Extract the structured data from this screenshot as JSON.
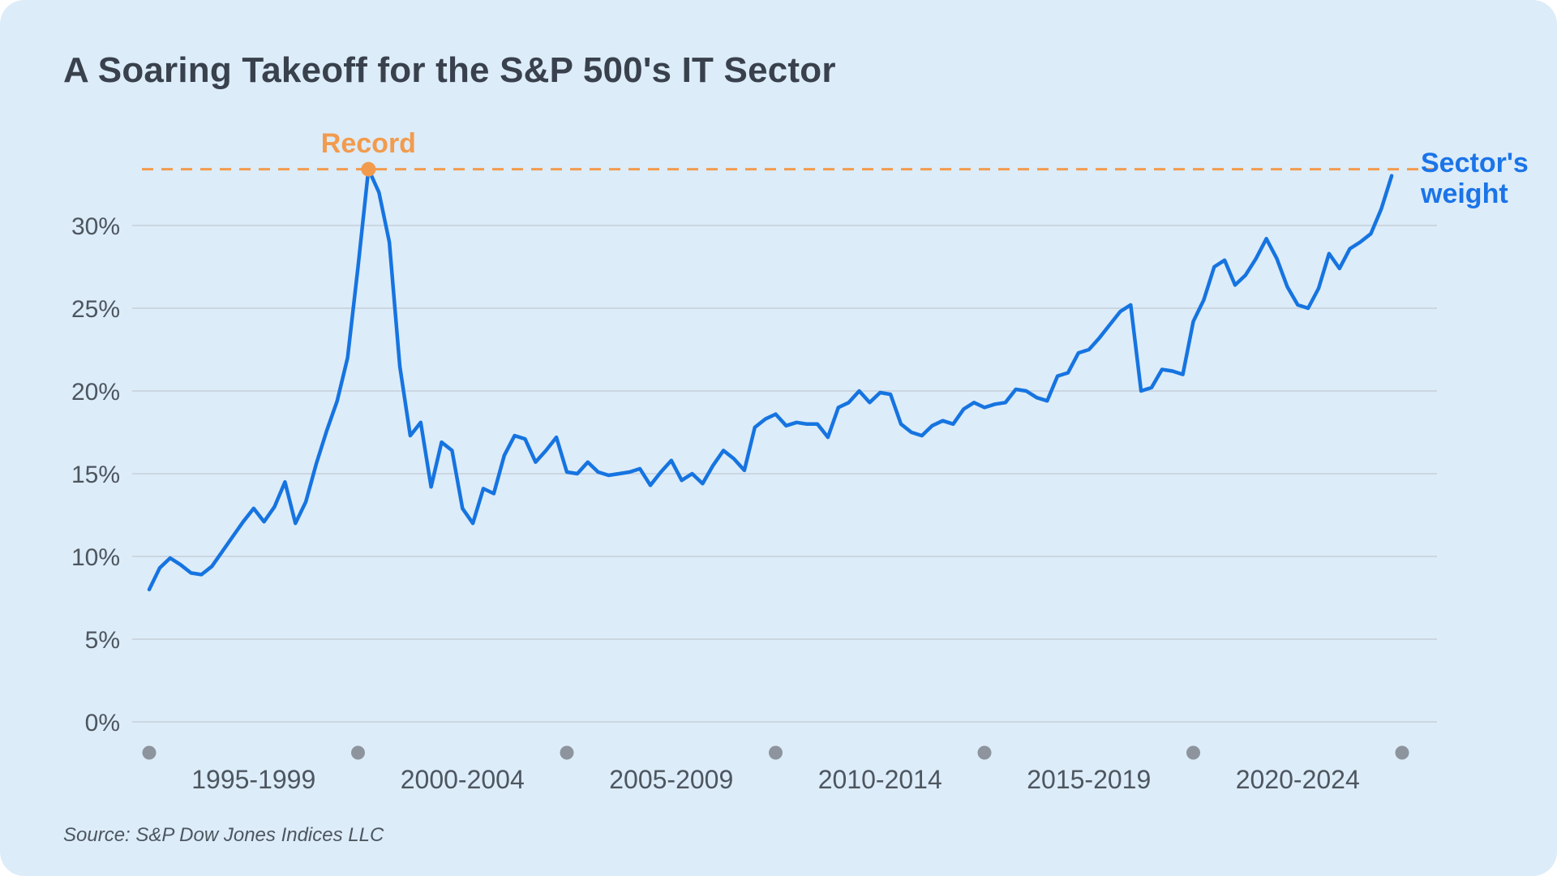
{
  "title": "A Soaring Takeoff for the S&P 500's IT Sector",
  "source": "Source: S&P Dow Jones Indices LLC",
  "annotations": {
    "record": "Record",
    "series_line1": "Sector's",
    "series_line2": "weight"
  },
  "colors": {
    "background": "#dcecf9",
    "line_blue": "#1674e0",
    "record_orange": "#f29b4d",
    "series_label_blue": "#1b74e8",
    "grid": "#c6cfd9",
    "axis_text": "#4d565f",
    "tick_dot": "#8d949d"
  },
  "chart_data": {
    "type": "line",
    "title": "A Soaring Takeoff for the S&P 500's IT Sector",
    "series_name": "Sector's weight",
    "unit": "%",
    "x_start": 1995.0,
    "x_step": 0.25,
    "xlim": [
      1995,
      2025
    ],
    "ylim": [
      0,
      35
    ],
    "grid": true,
    "y_tick_values": [
      0,
      5,
      10,
      15,
      20,
      25,
      30
    ],
    "y_tick_labels": [
      "0%",
      "5%",
      "10%",
      "15%",
      "20%",
      "25%",
      "30%"
    ],
    "x_boundaries": [
      1995,
      2000,
      2005,
      2010,
      2015,
      2020,
      2025
    ],
    "x_group_labels": [
      "1995-1999",
      "2000-2004",
      "2005-2009",
      "2010-2014",
      "2015-2019",
      "2020-2024"
    ],
    "record": {
      "x": 2000.25,
      "value": 33.4
    },
    "values": [
      8.0,
      9.3,
      9.9,
      9.5,
      9.0,
      8.9,
      9.4,
      10.3,
      11.2,
      12.1,
      12.9,
      12.1,
      13.0,
      14.5,
      12.0,
      13.3,
      15.6,
      17.6,
      19.4,
      22.0,
      27.5,
      33.4,
      32.0,
      29.0,
      21.5,
      17.3,
      18.1,
      14.2,
      16.9,
      16.4,
      12.9,
      12.0,
      14.1,
      13.8,
      16.1,
      17.3,
      17.1,
      15.7,
      16.4,
      17.2,
      15.1,
      15.0,
      15.7,
      15.1,
      14.9,
      15.0,
      15.1,
      15.3,
      14.3,
      15.1,
      15.8,
      14.6,
      15.0,
      14.4,
      15.5,
      16.4,
      15.9,
      15.2,
      17.8,
      18.3,
      18.6,
      17.9,
      18.1,
      18.0,
      18.0,
      17.2,
      19.0,
      19.3,
      20.0,
      19.3,
      19.9,
      19.8,
      18.0,
      17.5,
      17.3,
      17.9,
      18.2,
      18.0,
      18.9,
      19.3,
      19.0,
      19.2,
      19.3,
      20.1,
      20.0,
      19.6,
      19.4,
      20.9,
      21.1,
      22.3,
      22.5,
      23.2,
      24.0,
      24.8,
      25.2,
      20.0,
      20.2,
      21.3,
      21.2,
      21.0,
      24.2,
      25.5,
      27.5,
      27.9,
      26.4,
      27.0,
      28.0,
      29.2,
      28.0,
      26.3,
      25.2,
      25.0,
      26.2,
      28.3,
      27.4,
      28.6,
      29.0,
      29.5,
      31.0,
      33.0
    ]
  }
}
